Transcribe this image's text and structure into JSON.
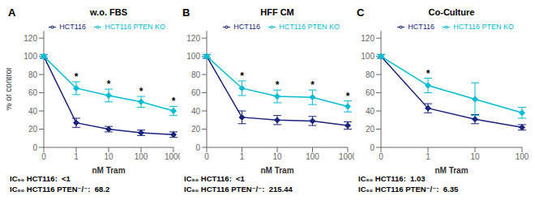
{
  "chart_data": [
    {
      "type": "line",
      "title": "w.o. FBS",
      "xlabel": "nM Tram",
      "ylabel": "% of control",
      "categories": [
        "0",
        "1",
        "10",
        "100",
        "1000"
      ],
      "series": [
        {
          "name": "HCT116",
          "color": "#1a237e",
          "marker": "diamond",
          "values": [
            100,
            27,
            20,
            16,
            14
          ],
          "errors": [
            2,
            5,
            3,
            3,
            3
          ]
        },
        {
          "name": "HCT116 PTEN KO",
          "color": "#00bcd4",
          "marker": "diamond",
          "values": [
            100,
            65,
            57,
            50,
            40
          ],
          "errors": [
            2,
            7,
            7,
            6,
            5
          ]
        }
      ],
      "ylim": [
        0,
        128
      ],
      "yticks": [
        0,
        20,
        40,
        60,
        80,
        100,
        120
      ],
      "grid": false,
      "legend": "upper right",
      "annotations": [
        {
          "text": "A",
          "position": "top left"
        },
        {
          "text": "*",
          "x": "1",
          "series": "HCT116 PTEN KO"
        },
        {
          "text": "*",
          "x": "10",
          "series": "HCT116 PTEN KO"
        },
        {
          "text": "*",
          "x": "100",
          "series": "HCT116 PTEN KO"
        },
        {
          "text": "*",
          "x": "1000",
          "series": "HCT116 PTEN KO"
        },
        {
          "text": "IC₅₀ HCT116:  <1",
          "position": "below"
        },
        {
          "text": "IC₅₀ HCT116 PTEN⁻/⁻:  68.2",
          "position": "below"
        }
      ]
    },
    {
      "type": "line",
      "title": "HFF CM",
      "xlabel": "nM Tram",
      "categories": [
        "0",
        "1",
        "10",
        "100",
        "1000"
      ],
      "series": [
        {
          "name": "HCT116",
          "color": "#1a237e",
          "marker": "diamond",
          "values": [
            100,
            33,
            30,
            29,
            24
          ],
          "errors": [
            2,
            7,
            5,
            5,
            4
          ]
        },
        {
          "name": "HCT116 PTEN KO",
          "color": "#00bcd4",
          "marker": "diamond",
          "values": [
            100,
            65,
            56,
            55,
            45
          ],
          "errors": [
            2,
            8,
            7,
            8,
            6
          ]
        }
      ],
      "ylim": [
        0,
        128
      ],
      "yticks": [
        0,
        20,
        40,
        60,
        80,
        100,
        120
      ],
      "grid": false,
      "legend": "upper right",
      "annotations": [
        {
          "text": "B",
          "position": "top left"
        },
        {
          "text": "*",
          "x": "1",
          "series": "HCT116 PTEN KO"
        },
        {
          "text": "*",
          "x": "10",
          "series": "HCT116 PTEN KO"
        },
        {
          "text": "*",
          "x": "100",
          "series": "HCT116 PTEN KO"
        },
        {
          "text": "*",
          "x": "1000",
          "series": "HCT116 PTEN KO"
        },
        {
          "text": "IC₅₀ HCT116:  <1",
          "position": "below"
        },
        {
          "text": "IC₅₀ HCT116 PTEN⁻/⁻:  215.44",
          "position": "below"
        }
      ]
    },
    {
      "type": "line",
      "title": "Co-Culture",
      "xlabel": "nM Tram",
      "categories": [
        "0",
        "1",
        "10",
        "100"
      ],
      "series": [
        {
          "name": "HCT116",
          "color": "#1a237e",
          "marker": "diamond",
          "values": [
            100,
            43,
            31,
            22
          ],
          "errors": [
            2,
            5,
            5,
            3
          ]
        },
        {
          "name": "HCT116 PTEN KO",
          "color": "#00bcd4",
          "marker": "diamond",
          "values": [
            100,
            68,
            53,
            38
          ],
          "errors": [
            2,
            8,
            18,
            6
          ]
        }
      ],
      "ylim": [
        0,
        128
      ],
      "yticks": [
        0,
        20,
        40,
        60,
        80,
        100,
        120
      ],
      "grid": false,
      "legend": "upper right",
      "annotations": [
        {
          "text": "C",
          "position": "top left"
        },
        {
          "text": "*",
          "x": "1",
          "series": "HCT116 PTEN KO"
        },
        {
          "text": "IC₅₀ HCT116:  1.03",
          "position": "below"
        },
        {
          "text": "IC₅₀ HCT116 PTEN⁻/⁻:  6.35",
          "position": "below"
        }
      ]
    }
  ]
}
